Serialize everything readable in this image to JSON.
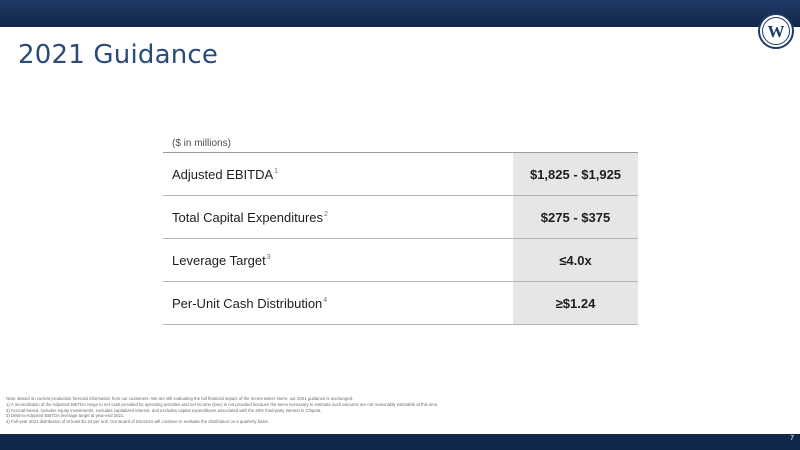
{
  "slide": {
    "title": "2021 Guidance",
    "page_number": "7"
  },
  "logo": {
    "letter": "W",
    "icon": "company-logo-w"
  },
  "table": {
    "units": "($ in millions)",
    "rows": [
      {
        "label": "Adjusted EBITDA",
        "sup": "1",
        "value": "$1,825 - $1,925"
      },
      {
        "label": "Total Capital Expenditures",
        "sup": "2",
        "value": "$275 - $375"
      },
      {
        "label": "Leverage Target",
        "sup": "3",
        "value": "≤4.0x"
      },
      {
        "label": "Per-Unit Cash Distribution",
        "sup": "4",
        "value": "≥$1.24"
      }
    ]
  },
  "footnotes": [
    "Note: Based on current production forecast information from our customers. We are still evaluating the full financial impact of the recent winter storm; our 2021 guidance is unchanged.",
    "1) A reconciliation of the Adjusted EBITDA range to net cash provided by operating activities and net income (loss) is not provided because the items necessary to estimate such amounts are not reasonably estimable at this time.",
    "2) Accrual-based, includes equity investments, excludes capitalized interest, and excludes capital expenditures associated with the 25% third-party interest in Chipeta.",
    "3) Debt-to-Adjusted EBITDA leverage target at year-end 2021.",
    "4) Full-year 2021 distribution of at least $1.24 per unit. Our Board of Directors will continue to evaluate the distribution on a quarterly basis."
  ],
  "colors": {
    "brand_navy": "#12284b",
    "title_blue": "#2a4a78",
    "value_cell_gray": "#e6e6e6"
  }
}
